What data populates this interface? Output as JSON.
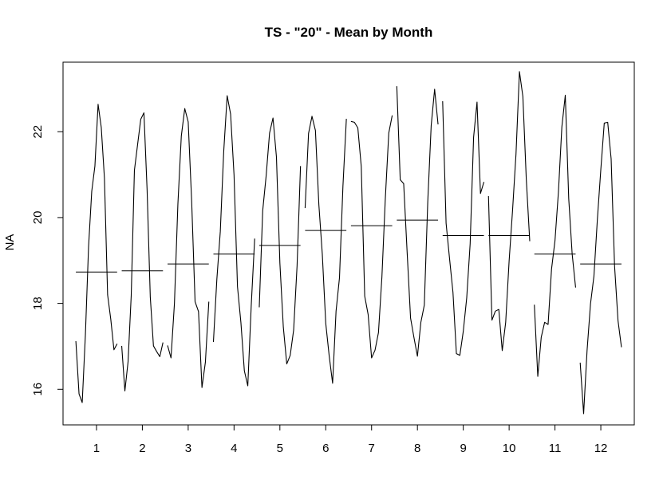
{
  "chart_data": {
    "type": "line",
    "title": "TS - \"20\" - Mean by Month",
    "xlabel": "",
    "ylabel": "NA",
    "categories": [
      "1",
      "2",
      "3",
      "4",
      "5",
      "6",
      "7",
      "8",
      "9",
      "10",
      "11",
      "12"
    ],
    "yticks": [
      16,
      18,
      20,
      22
    ],
    "ylim": [
      15.17,
      23.62
    ],
    "xlim": [
      0.27,
      12.73
    ],
    "grid": false,
    "legend": "none",
    "means": [
      18.73,
      18.76,
      18.92,
      19.15,
      19.35,
      19.7,
      19.81,
      19.94,
      19.58,
      19.58,
      19.15,
      18.92
    ],
    "subseries": [
      [
        17.12,
        15.89,
        15.69,
        17.26,
        19.32,
        20.61,
        21.2,
        22.64,
        22.1,
        20.92,
        18.2,
        17.63,
        16.92,
        17.06
      ],
      [
        17.01,
        15.96,
        16.64,
        18.19,
        21.1,
        21.7,
        22.29,
        22.44,
        20.64,
        18.15,
        17.01,
        16.88,
        16.76,
        17.09
      ],
      [
        17.02,
        16.73,
        18.0,
        20.31,
        21.9,
        22.54,
        22.23,
        20.4,
        18.04,
        17.81,
        16.04,
        16.63,
        18.04
      ],
      [
        17.1,
        18.56,
        19.67,
        21.54,
        22.84,
        22.41,
        20.99,
        18.39,
        17.55,
        16.43,
        16.08,
        17.95,
        19.51
      ],
      [
        17.91,
        20.16,
        20.97,
        21.97,
        22.32,
        21.41,
        18.94,
        17.45,
        16.59,
        16.79,
        17.38,
        18.88,
        21.2
      ],
      [
        20.22,
        21.96,
        22.36,
        22.03,
        20.3,
        19.15,
        17.54,
        16.78,
        16.14,
        17.82,
        18.6,
        20.73,
        22.3
      ],
      [
        22.24,
        22.22,
        22.09,
        21.19,
        18.17,
        17.74,
        16.73,
        16.91,
        17.32,
        18.61,
        20.45,
        21.97,
        22.38
      ],
      [
        23.06,
        20.88,
        20.79,
        19.2,
        17.66,
        17.2,
        16.77,
        17.56,
        17.96,
        20.36,
        22.14,
        22.99,
        22.17
      ],
      [
        22.71,
        19.87,
        19.05,
        18.26,
        16.83,
        16.79,
        17.35,
        18.13,
        19.39,
        21.87,
        22.69,
        20.56,
        20.83
      ],
      [
        20.5,
        17.61,
        17.82,
        17.86,
        16.9,
        17.56,
        18.99,
        20.17,
        21.48,
        23.4,
        22.82,
        20.88,
        19.45
      ],
      [
        17.97,
        16.3,
        17.21,
        17.56,
        17.51,
        18.8,
        19.46,
        20.59,
        22.11,
        22.85,
        20.44,
        19.15,
        18.37
      ],
      [
        16.62,
        15.43,
        16.9,
        17.99,
        18.64,
        19.96,
        21.12,
        22.2,
        22.22,
        21.37,
        18.87,
        17.6,
        16.98
      ]
    ]
  }
}
